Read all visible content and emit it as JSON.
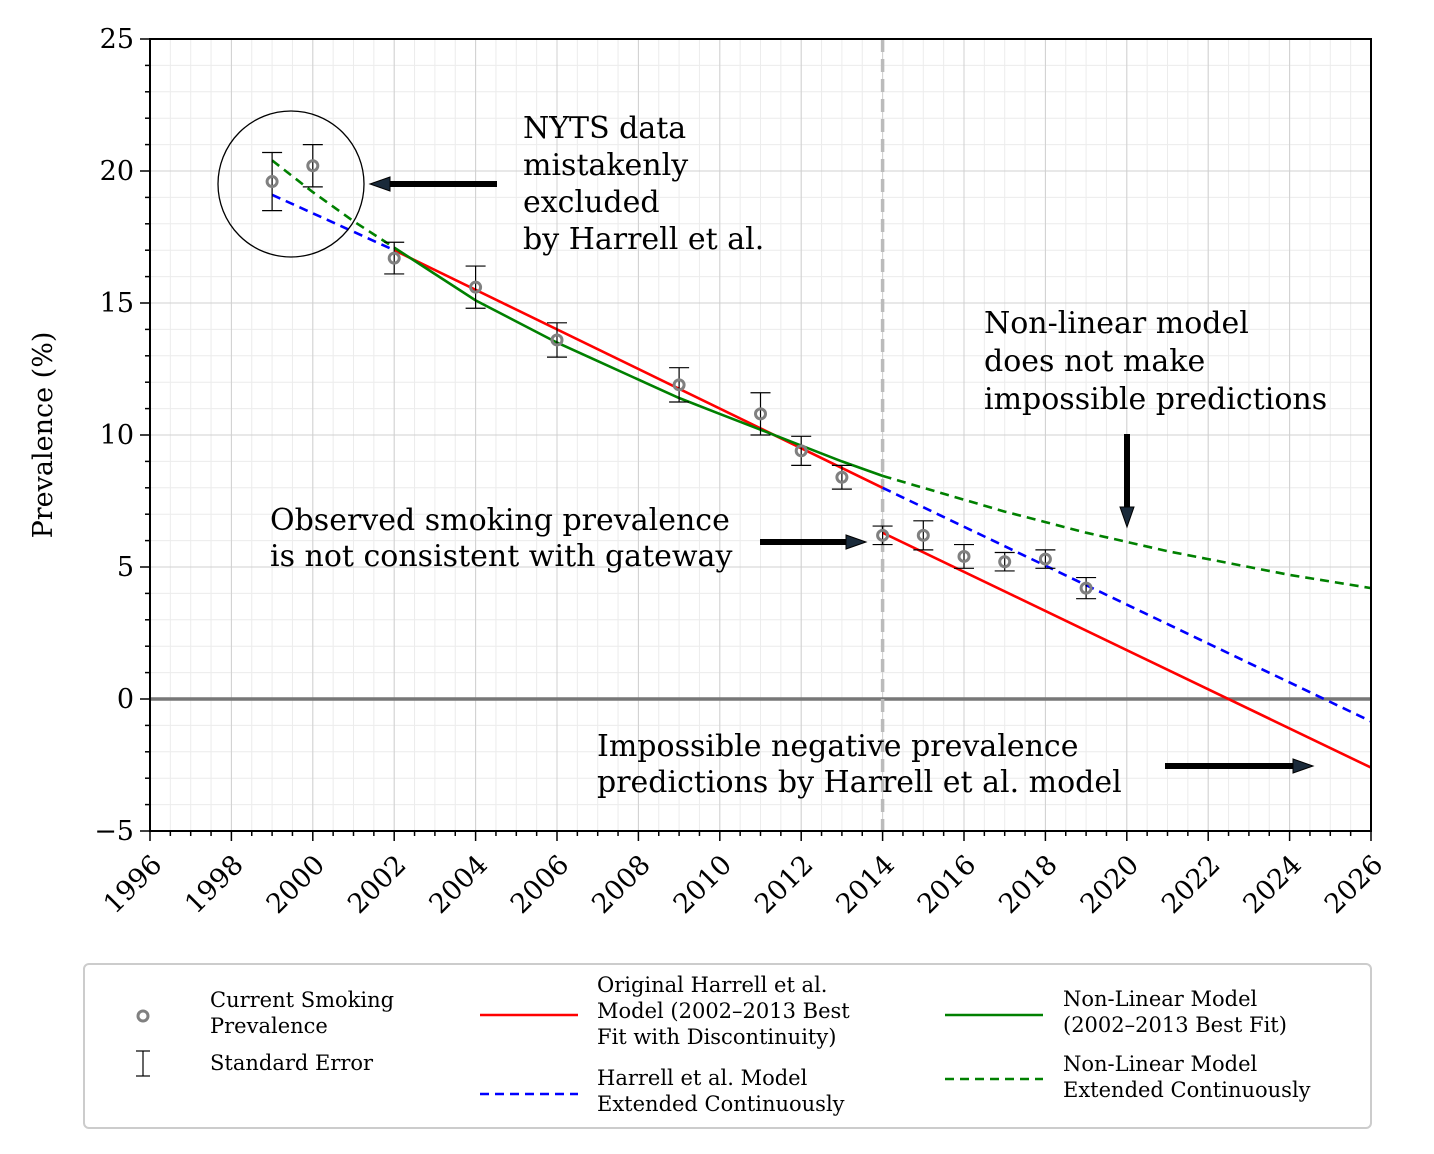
{
  "chart_data": {
    "type": "line",
    "xlim": [
      1996,
      2026
    ],
    "ylim": [
      -5,
      25
    ],
    "ylabel": "Prevalence (%)",
    "xlabel": "",
    "x_ticks": [
      1996,
      1998,
      2000,
      2002,
      2004,
      2006,
      2008,
      2010,
      2012,
      2014,
      2016,
      2018,
      2020,
      2022,
      2024,
      2026
    ],
    "x_tick_labels": [
      "1996",
      "1998",
      "2000",
      "2002",
      "2004",
      "2006",
      "2008",
      "2010",
      "2012",
      "2014",
      "2016",
      "2018",
      "2020",
      "2022",
      "2024",
      "2026"
    ],
    "y_ticks": [
      -5,
      0,
      5,
      10,
      15,
      20,
      25
    ],
    "y_tick_labels": [
      "−5",
      "0",
      "5",
      "10",
      "15",
      "20",
      "25"
    ],
    "grid": true,
    "legend_position": "below",
    "vertical_reference_line_x": 2014,
    "horizontal_reference_line_y": 0,
    "series": [
      {
        "name": "Current Smoking Prevalence",
        "kind": "scatter_with_error",
        "color": "#808080",
        "x": [
          1999,
          2000,
          2002,
          2004,
          2006,
          2009,
          2011,
          2012,
          2013,
          2014,
          2015,
          2016,
          2017,
          2018,
          2019
        ],
        "y": [
          19.6,
          20.2,
          16.7,
          15.6,
          13.6,
          11.9,
          10.8,
          9.4,
          8.4,
          6.2,
          6.2,
          5.4,
          5.2,
          5.3,
          4.2
        ],
        "err": [
          1.1,
          0.8,
          0.6,
          0.8,
          0.65,
          0.65,
          0.8,
          0.55,
          0.45,
          0.35,
          0.55,
          0.45,
          0.35,
          0.35,
          0.4
        ]
      },
      {
        "name": "Original Harrell et al. Model (2002–2013 Best Fit with Discontinuity)",
        "kind": "line",
        "color": "#ff0000",
        "segments": [
          {
            "x": [
              2002,
              2014
            ],
            "y": [
              17.0,
              8.0
            ]
          },
          {
            "x": [
              2014,
              2026
            ],
            "y": [
              6.3,
              -2.6
            ]
          }
        ]
      },
      {
        "name": "Harrell et al. Model Extended Continuously",
        "kind": "dashed_line",
        "color": "#0000ff",
        "segments": [
          {
            "x": [
              1999,
              2002
            ],
            "y": [
              19.1,
              17.0
            ]
          },
          {
            "x": [
              2014,
              2026
            ],
            "y": [
              8.0,
              -0.85
            ]
          }
        ]
      },
      {
        "name": "Non-Linear Model (2002–2013 Best Fit)",
        "kind": "line",
        "color": "#008000",
        "x": [
          2002,
          2003,
          2004,
          2005,
          2006,
          2007,
          2008,
          2009,
          2010,
          2011,
          2012,
          2013,
          2014
        ],
        "y": [
          17.1,
          16.1,
          15.1,
          14.3,
          13.5,
          12.8,
          12.1,
          11.4,
          10.8,
          10.2,
          9.6,
          9.0,
          8.45
        ]
      },
      {
        "name": "Non-Linear Model Extended Continuously",
        "kind": "dashed_line",
        "color": "#008000",
        "segments": [
          {
            "x": [
              1999,
              2000,
              2001,
              2002
            ],
            "y": [
              20.4,
              19.2,
              18.1,
              17.1
            ]
          },
          {
            "x": [
              2014,
              2015,
              2016,
              2017,
              2018,
              2019,
              2020,
              2021,
              2022,
              2023,
              2024,
              2025,
              2026
            ],
            "y": [
              8.45,
              8.0,
              7.55,
              7.1,
              6.7,
              6.3,
              5.95,
              5.6,
              5.3,
              5.0,
              4.7,
              4.45,
              4.2
            ]
          }
        ]
      }
    ],
    "annotations": [
      {
        "lines": [
          "NYTS data",
          "mistakenly",
          "excluded",
          "by Harrell et al."
        ]
      },
      {
        "lines": [
          "Non-linear model",
          "does not make",
          "impossible predictions"
        ]
      },
      {
        "lines": [
          "Observed smoking prevalence",
          "is not consistent with gateway"
        ]
      },
      {
        "lines": [
          "Impossible negative prevalence",
          "predictions by Harrell et al. model"
        ]
      }
    ],
    "legend_entries": [
      {
        "lines": [
          "Current Smoking",
          "Prevalence"
        ]
      },
      {
        "lines": [
          "Standard Error"
        ]
      },
      {
        "lines": [
          "Original Harrell et al.",
          "Model (2002–2013 Best",
          "Fit with Discontinuity)"
        ]
      },
      {
        "lines": [
          "Harrell et al. Model",
          "Extended Continuously"
        ]
      },
      {
        "lines": [
          "Non-Linear Model",
          "(2002–2013 Best Fit)"
        ]
      },
      {
        "lines": [
          "Non-Linear Model",
          "Extended Continuously"
        ]
      }
    ]
  }
}
